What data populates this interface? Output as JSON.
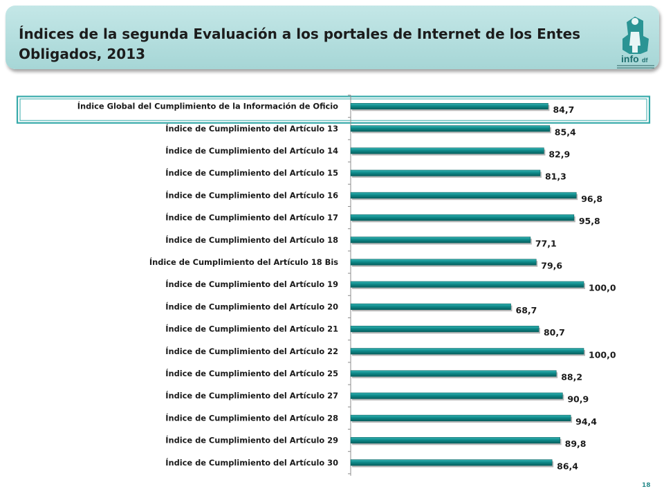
{
  "header": {
    "title": "Índices de la segunda Evaluación a los portales de Internet de los Entes Obligados, 2013",
    "logo_text": "info",
    "logo_sub": "df"
  },
  "colors": {
    "banner": "#a9d8d8",
    "bar": "#0f8a8a",
    "bar_light": "#35b3b3",
    "bar_dark": "#06605f",
    "highlight_border": "#35a9a9"
  },
  "chart_data": {
    "type": "bar",
    "orientation": "horizontal",
    "title": "",
    "xlabel": "",
    "ylabel": "",
    "xlim": [
      0,
      100
    ],
    "grid": false,
    "legend": "none",
    "categories": [
      "Índice Global del Cumplimiento de la Información de Oficio",
      "Índice de Cumplimiento del Artículo 13",
      "Índice de Cumplimiento del Artículo 14",
      "Índice de Cumplimiento del Artículo 15",
      "Índice de Cumplimiento del Artículo 16",
      "Índice de Cumplimiento del Artículo 17",
      "Índice de Cumplimiento del Artículo 18",
      "Índice de Cumplimiento del Artículo 18 Bis",
      "Índice de Cumplimiento del Artículo 19",
      "Índice de Cumplimiento del Artículo 20",
      "Índice de Cumplimiento del Artículo 21",
      "Índice de Cumplimiento del Artículo 22",
      "Índice de Cumplimiento del Artículo 25",
      "Índice de Cumplimiento del Artículo 27",
      "Índice de Cumplimiento del Artículo 28",
      "Índice de Cumplimiento del Artículo 29",
      "Índice de Cumplimiento del Artículo 30"
    ],
    "values": [
      84.7,
      85.4,
      82.9,
      81.3,
      96.8,
      95.8,
      77.1,
      79.6,
      100.0,
      68.7,
      80.7,
      100.0,
      88.2,
      90.9,
      94.4,
      89.8,
      86.4
    ],
    "value_labels": [
      "84,7",
      "85,4",
      "82,9",
      "81,3",
      "96,8",
      "95,8",
      "77,1",
      "79,6",
      "100,0",
      "68,7",
      "80,7",
      "100,0",
      "88,2",
      "90,9",
      "94,4",
      "89,8",
      "86,4"
    ],
    "highlighted_category": "Índice Global del Cumplimiento de la Información de Oficio"
  },
  "footer": {
    "page_number": "18"
  }
}
